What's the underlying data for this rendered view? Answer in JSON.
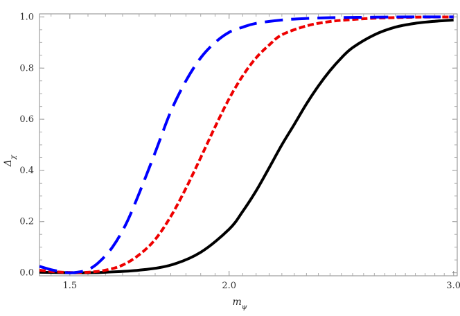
{
  "chart_data": {
    "type": "line",
    "title": "",
    "xlabel": "m_ψ",
    "ylabel": "Δ_χ",
    "x_scale": "log",
    "xlim": [
      1.42,
      3.02
    ],
    "ylim": [
      -0.012,
      1.012
    ],
    "x_ticks": [
      1.5,
      2.0,
      3.0
    ],
    "x_tick_labels": [
      "1.5",
      "2.0",
      "3.0"
    ],
    "y_ticks": [
      0.0,
      0.2,
      0.4,
      0.6,
      0.8,
      1.0
    ],
    "y_tick_labels": [
      "0.0",
      "0.2",
      "0.4",
      "0.6",
      "0.8",
      "1.0"
    ],
    "grid": false,
    "series": [
      {
        "color": "#0000ff",
        "style": "long-dash",
        "x": [
          1.42,
          1.45,
          1.48,
          1.5,
          1.52,
          1.55,
          1.58,
          1.62,
          1.66,
          1.7,
          1.75,
          1.8,
          1.85,
          1.9,
          1.95,
          2.0,
          2.05,
          2.1,
          2.2,
          2.3,
          2.4,
          2.6,
          2.8,
          3.0
        ],
        "values": [
          0.025,
          0.012,
          0.003,
          0.0,
          0.002,
          0.012,
          0.04,
          0.1,
          0.19,
          0.31,
          0.47,
          0.63,
          0.75,
          0.84,
          0.9,
          0.94,
          0.96,
          0.975,
          0.988,
          0.994,
          0.997,
          0.999,
          1.0,
          1.0
        ]
      },
      {
        "color": "#ee0000",
        "style": "short-dash",
        "x": [
          1.42,
          1.45,
          1.5,
          1.55,
          1.6,
          1.65,
          1.7,
          1.75,
          1.8,
          1.85,
          1.9,
          1.95,
          2.0,
          2.05,
          2.1,
          2.15,
          2.2,
          2.3,
          2.4,
          2.5,
          2.6,
          2.8,
          3.0
        ],
        "values": [
          0.01,
          0.005,
          0.001,
          0.002,
          0.01,
          0.03,
          0.07,
          0.13,
          0.22,
          0.33,
          0.45,
          0.57,
          0.68,
          0.77,
          0.84,
          0.89,
          0.93,
          0.965,
          0.982,
          0.99,
          0.995,
          0.999,
          1.0
        ]
      },
      {
        "color": "#000000",
        "style": "solid",
        "x": [
          1.42,
          1.5,
          1.55,
          1.6,
          1.7,
          1.8,
          1.9,
          2.0,
          2.05,
          2.1,
          2.15,
          2.2,
          2.25,
          2.3,
          2.35,
          2.4,
          2.45,
          2.5,
          2.6,
          2.7,
          2.8,
          2.9,
          3.0
        ],
        "values": [
          0.002,
          0.0,
          0.0,
          0.002,
          0.01,
          0.03,
          0.08,
          0.17,
          0.24,
          0.32,
          0.41,
          0.5,
          0.58,
          0.66,
          0.73,
          0.79,
          0.84,
          0.88,
          0.93,
          0.96,
          0.975,
          0.983,
          0.988
        ]
      }
    ]
  }
}
